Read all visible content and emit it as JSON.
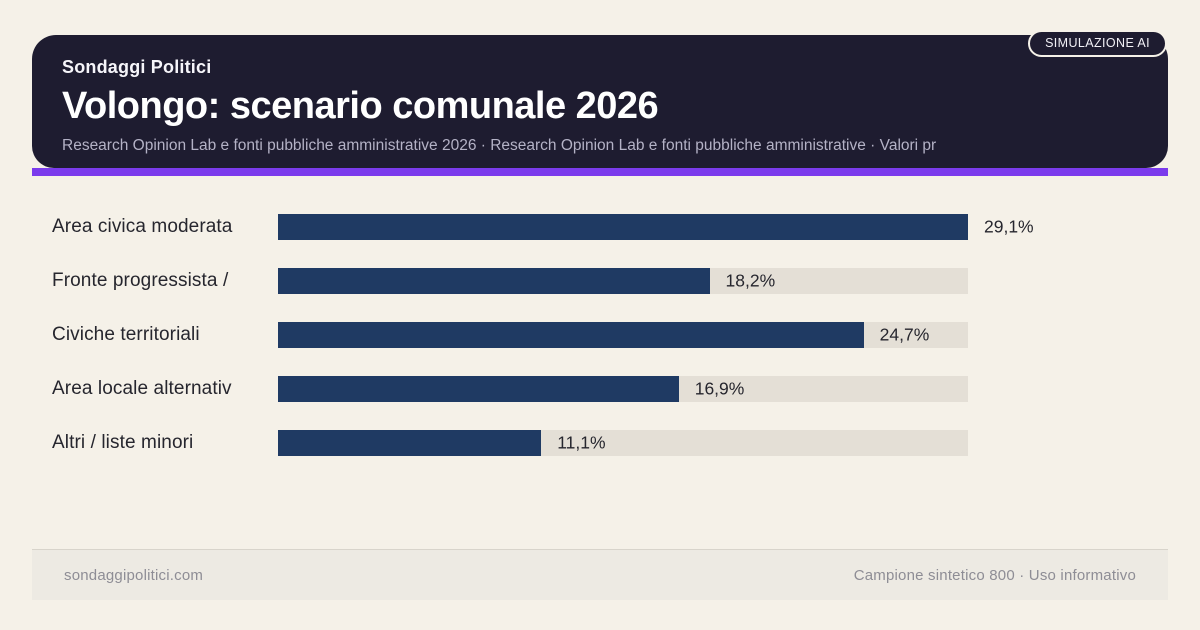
{
  "badge": "SIMULAZIONE AI",
  "header": {
    "kicker": "Sondaggi Politici",
    "title": "Volongo: scenario comunale 2026",
    "subtitle": "Research Opinion Lab e fonti pubbliche amministrative 2026 · Research Opinion Lab e fonti pubbliche amministrative · Valori pr"
  },
  "chart_data": {
    "type": "bar",
    "orientation": "horizontal",
    "title": "Volongo: scenario comunale 2026",
    "categories": [
      "Area civica moderata",
      "Fronte progressista /",
      "Civiche territoriali",
      "Area locale alternativ",
      "Altri / liste minori"
    ],
    "values": [
      29.1,
      18.2,
      24.7,
      16.9,
      11.1
    ],
    "value_labels": [
      "29,1%",
      "18,2%",
      "24,7%",
      "16,9%",
      "11,1%"
    ],
    "xlim": [
      0,
      29.1
    ],
    "grid": false,
    "legend": false
  },
  "footer": {
    "left": "sondaggipolitici.com",
    "right": "Campione sintetico 800 · Uso informativo"
  },
  "colors": {
    "background": "#f5f1e8",
    "card": "#1e1c30",
    "accent": "#7b3bec",
    "bar": "#1f3a63",
    "track": "#e4dfd6"
  }
}
